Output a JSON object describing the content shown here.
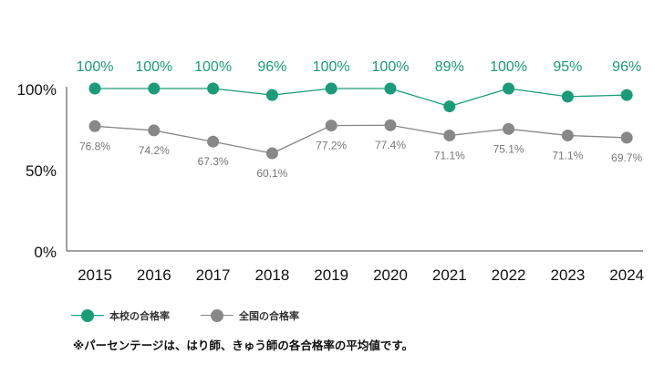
{
  "chart_data": {
    "type": "line",
    "categories": [
      "2015",
      "2016",
      "2017",
      "2018",
      "2019",
      "2020",
      "2021",
      "2022",
      "2023",
      "2024"
    ],
    "ylim": [
      0,
      100
    ],
    "yticks": [
      0,
      50,
      100
    ],
    "ytick_labels": [
      "0%",
      "50%",
      "100%"
    ],
    "grid": false,
    "legend_position": "bottom-left",
    "series": [
      {
        "name": "本校の合格率",
        "color": "#1a9c78",
        "values": [
          100,
          100,
          100,
          96,
          100,
          100,
          89,
          100,
          95,
          96
        ],
        "labels": [
          "100%",
          "100%",
          "100%",
          "96%",
          "100%",
          "100%",
          "89%",
          "100%",
          "95%",
          "96%"
        ]
      },
      {
        "name": "全国の合格率",
        "color": "#888888",
        "values": [
          76.8,
          74.2,
          67.3,
          60.1,
          77.2,
          77.4,
          71.1,
          75.1,
          71.1,
          69.7
        ],
        "labels": [
          "76.8%",
          "74.2%",
          "67.3%",
          "60.1%",
          "77.2%",
          "77.4%",
          "71.1%",
          "75.1%",
          "71.1%",
          "69.7%"
        ]
      }
    ],
    "note": "※パーセンテージは、はり師、きゅう師の各合格率の平均値です。"
  }
}
